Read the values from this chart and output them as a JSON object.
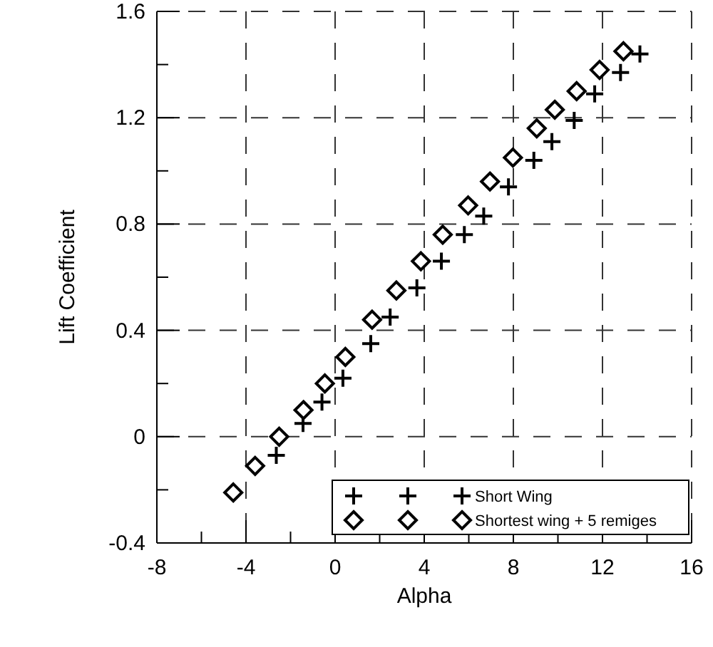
{
  "chart_data": {
    "type": "scatter",
    "xlabel": "Alpha",
    "ylabel": "Lift Coefficient",
    "xlim": [
      -8,
      16
    ],
    "xticks": [
      -8,
      -4,
      0,
      4,
      8,
      12,
      16
    ],
    "ylim": [
      -0.4,
      1.6
    ],
    "yticks": [
      -0.4,
      0,
      0.4,
      0.8,
      1.2,
      1.6
    ],
    "grid": true,
    "legend": "bottom right",
    "series": [
      {
        "name": "Short Wing",
        "color": "#000000",
        "marker": "cross",
        "x": [
          -2.64,
          -1.44,
          -0.59,
          0.35,
          1.6,
          2.47,
          3.67,
          4.77,
          5.8,
          6.67,
          7.78,
          8.92,
          9.73,
          10.73,
          11.65,
          12.81,
          13.68
        ],
        "values": [
          -0.07,
          0.05,
          0.13,
          0.22,
          0.35,
          0.45,
          0.56,
          0.66,
          0.76,
          0.83,
          0.94,
          1.04,
          1.11,
          1.19,
          1.29,
          1.37,
          1.44
        ]
      },
      {
        "name": "Shortest wing + 5 remiges",
        "color": "#000000",
        "marker": "diamond",
        "x": [
          -4.57,
          -3.59,
          -2.51,
          -1.42,
          -0.46,
          0.46,
          1.66,
          2.75,
          3.85,
          4.83,
          5.97,
          6.95,
          7.98,
          9.05,
          9.86,
          10.84,
          11.87,
          12.94
        ],
        "values": [
          -0.21,
          -0.11,
          0,
          0.1,
          0.2,
          0.3,
          0.44,
          0.55,
          0.66,
          0.76,
          0.87,
          0.96,
          1.05,
          1.16,
          1.23,
          1.3,
          1.38,
          1.45
        ]
      }
    ]
  }
}
